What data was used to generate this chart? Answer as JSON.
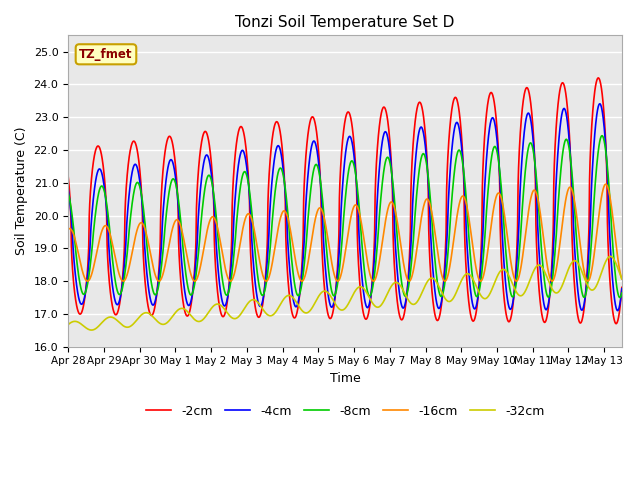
{
  "title": "Tonzi Soil Temperature Set D",
  "xlabel": "Time",
  "ylabel": "Soil Temperature (C)",
  "ylim": [
    16.0,
    25.5
  ],
  "annotation": "TZ_fmet",
  "annotation_bg": "#FFFFC0",
  "annotation_border": "#C8A000",
  "annotation_color": "#8B0000",
  "bg_color": "#E8E8E8",
  "grid_color": "white",
  "series_colors": [
    "#FF0000",
    "#0000FF",
    "#00CC00",
    "#FF8800",
    "#CCCC00"
  ],
  "series_labels": [
    "-2cm",
    "-4cm",
    "-8cm",
    "-16cm",
    "-32cm"
  ],
  "linewidth": 1.2,
  "xtick_labels": [
    "Apr 28",
    "Apr 29",
    "Apr 30",
    "May 1",
    "May 2",
    "May 3",
    "May 4",
    "May 5",
    "May 6",
    "May 7",
    "May 8",
    "May 9",
    "May 10",
    "May 11",
    "May 12",
    "May 13"
  ],
  "xtick_positions": [
    0,
    1,
    2,
    3,
    4,
    5,
    6,
    7,
    8,
    9,
    10,
    11,
    12,
    13,
    14,
    15
  ],
  "ytick_labels": [
    "16.0",
    "17.0",
    "18.0",
    "19.0",
    "20.0",
    "21.0",
    "22.0",
    "23.0",
    "24.0",
    "25.0"
  ],
  "ytick_positions": [
    16.0,
    17.0,
    18.0,
    19.0,
    20.0,
    21.0,
    22.0,
    23.0,
    24.0,
    25.0
  ]
}
